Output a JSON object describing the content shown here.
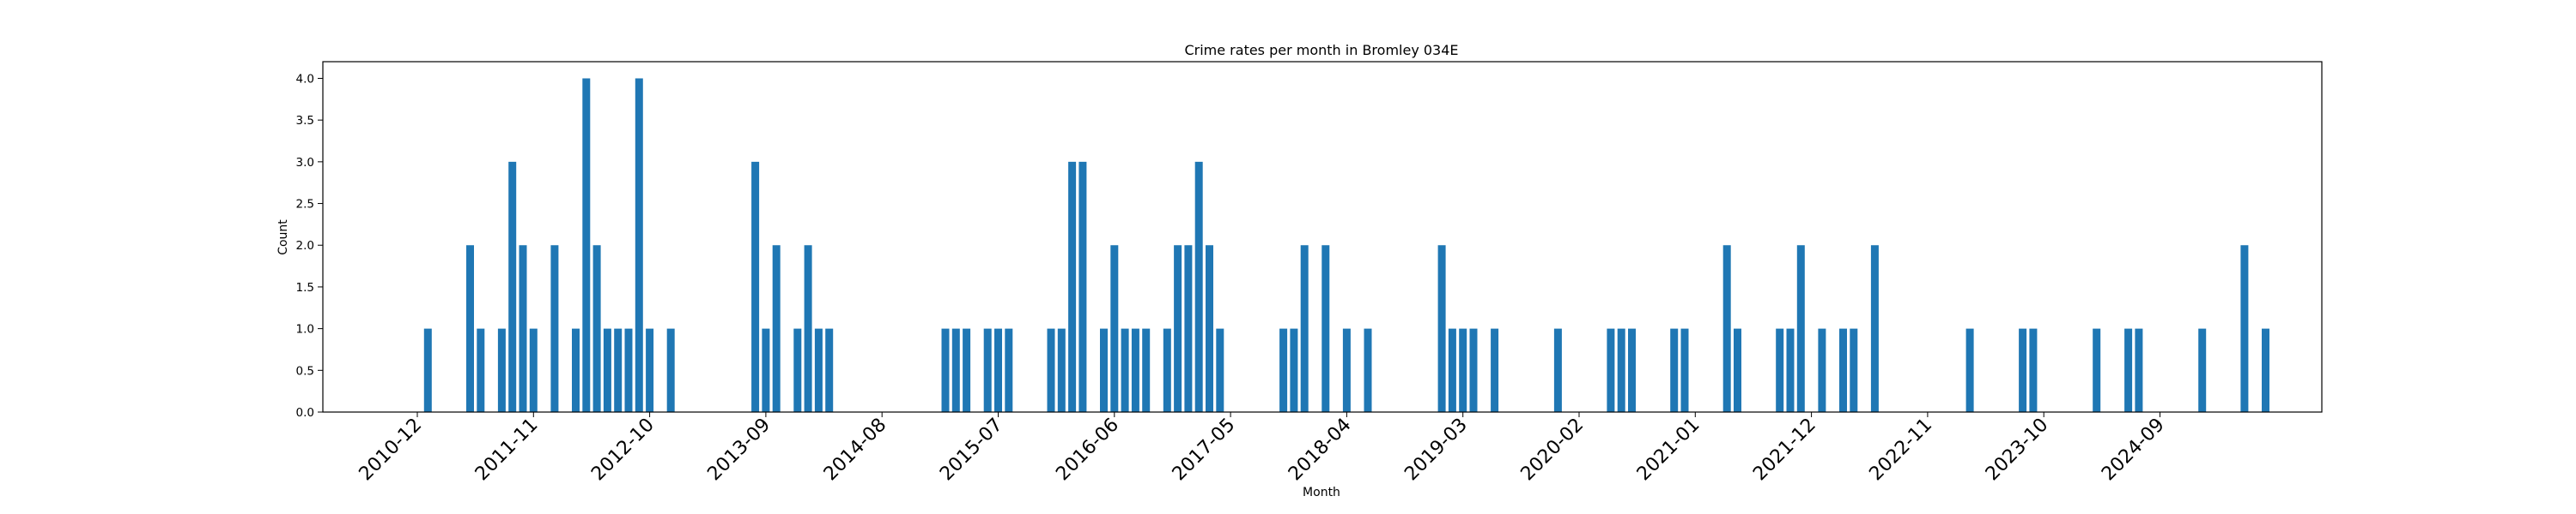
{
  "chart_data": {
    "type": "bar",
    "title": "Crime rates per month in Bromley 034E",
    "xlabel": "Month",
    "ylabel": "Count",
    "ylim": [
      0,
      4.2
    ],
    "yticks": [
      "0.0",
      "0.5",
      "1.0",
      "1.5",
      "2.0",
      "2.5",
      "3.0",
      "3.5",
      "4.0"
    ],
    "xticks": [
      "2010-12",
      "2011-11",
      "2012-10",
      "2013-09",
      "2014-08",
      "2015-07",
      "2016-06",
      "2017-05",
      "2018-04",
      "2019-03",
      "2020-02",
      "2021-01",
      "2021-12",
      "2022-11",
      "2023-10",
      "2024-09"
    ],
    "grid": false,
    "bar_color": "#1f77b4",
    "categories": [
      "2011-01",
      "2011-05",
      "2011-06",
      "2011-08",
      "2011-09",
      "2011-10",
      "2011-11",
      "2012-01",
      "2012-03",
      "2012-04",
      "2012-05",
      "2012-06",
      "2012-07",
      "2012-08",
      "2012-09",
      "2012-10",
      "2012-12",
      "2013-08",
      "2013-09",
      "2013-10",
      "2013-12",
      "2014-01",
      "2014-02",
      "2014-03",
      "2015-02",
      "2015-03",
      "2015-04",
      "2015-06",
      "2015-07",
      "2015-08",
      "2015-12",
      "2016-01",
      "2016-02",
      "2016-03",
      "2016-05",
      "2016-06",
      "2016-07",
      "2016-08",
      "2016-09",
      "2016-11",
      "2016-12",
      "2017-01",
      "2017-02",
      "2017-03",
      "2017-04",
      "2017-10",
      "2017-11",
      "2017-12",
      "2018-02",
      "2018-04",
      "2018-06",
      "2019-01",
      "2019-02",
      "2019-03",
      "2019-04",
      "2019-06",
      "2019-12",
      "2020-05",
      "2020-06",
      "2020-07",
      "2020-11",
      "2020-12",
      "2021-04",
      "2021-05",
      "2021-09",
      "2021-10",
      "2021-11",
      "2022-01",
      "2022-03",
      "2022-04",
      "2022-06",
      "2023-03",
      "2023-08",
      "2023-09",
      "2024-03",
      "2024-06",
      "2024-07",
      "2025-01",
      "2025-05",
      "2025-07"
    ],
    "values": [
      1,
      2,
      1,
      1,
      3,
      2,
      1,
      2,
      1,
      4,
      2,
      1,
      1,
      1,
      4,
      1,
      1,
      3,
      1,
      2,
      1,
      2,
      1,
      1,
      1,
      1,
      1,
      1,
      1,
      1,
      1,
      1,
      3,
      3,
      1,
      2,
      1,
      1,
      1,
      1,
      2,
      2,
      3,
      2,
      1,
      1,
      1,
      2,
      2,
      1,
      1,
      2,
      1,
      1,
      1,
      1,
      1,
      1,
      1,
      1,
      1,
      1,
      2,
      1,
      1,
      1,
      2,
      1,
      1,
      1,
      2,
      1,
      1,
      1,
      1,
      1,
      1,
      1,
      2,
      1
    ]
  }
}
